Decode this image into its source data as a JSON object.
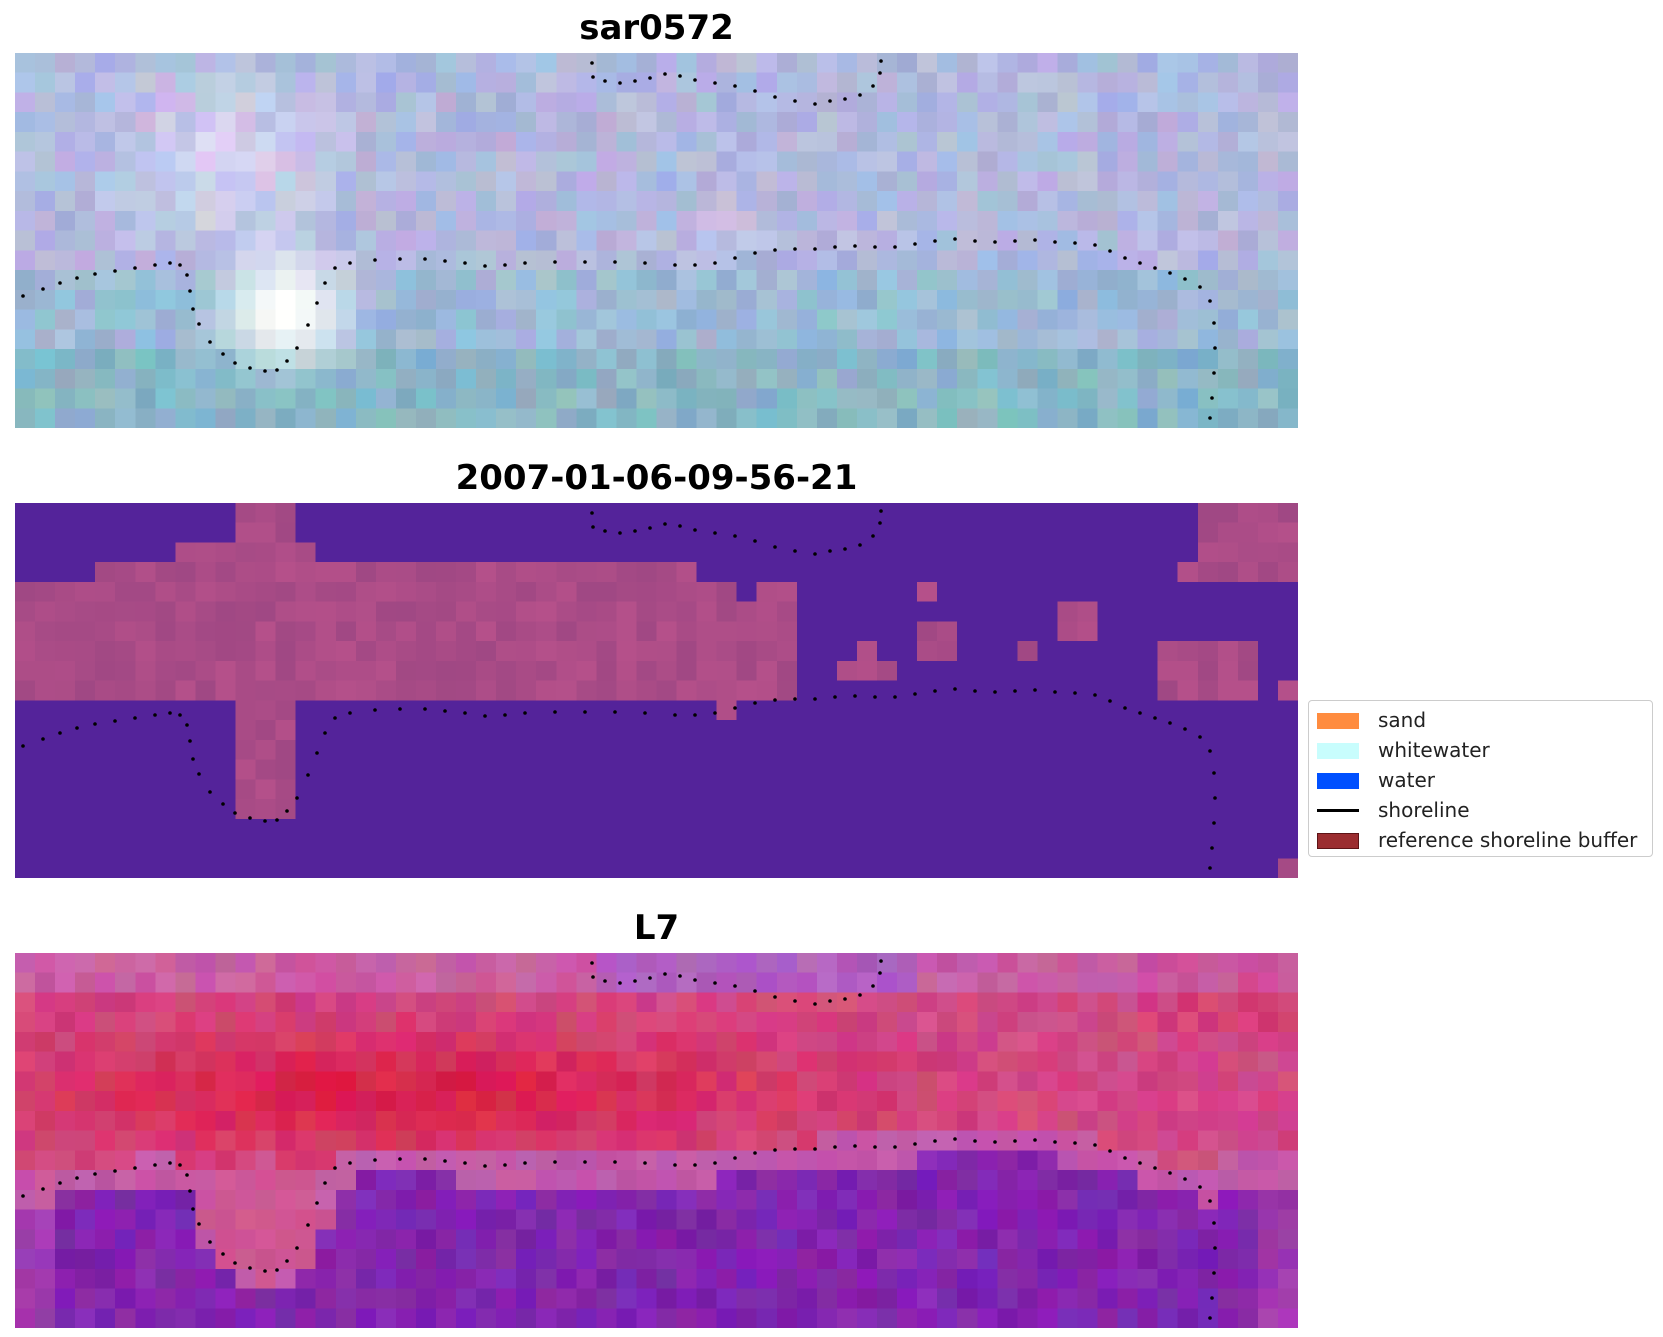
{
  "panels": [
    {
      "id": "rgb",
      "title": "sar0572",
      "style": "rgb"
    },
    {
      "id": "classified",
      "title": "2007-01-06-09-56-21",
      "style": "classified"
    },
    {
      "id": "index",
      "title": "L7",
      "style": "index"
    }
  ],
  "legend": {
    "items": [
      {
        "label": "sand",
        "kind": "patch",
        "color": "#ff8c3f",
        "edge": "#ff8c3f"
      },
      {
        "label": "whitewater",
        "kind": "patch",
        "color": "#c8fdfd",
        "edge": "#c8fdfd"
      },
      {
        "label": "water",
        "kind": "patch",
        "color": "#0050ff",
        "edge": "#0050ff"
      },
      {
        "label": "shoreline",
        "kind": "line",
        "color": "#000000",
        "edge": "#000000"
      },
      {
        "label": "reference shoreline buffer",
        "kind": "patch",
        "color": "#9b2d30",
        "edge": "#5e1417"
      }
    ]
  },
  "colors": {
    "classified_background": "#54239a",
    "classified_buffer": "#a44d8c",
    "shoreline_dots": "#000000"
  }
}
